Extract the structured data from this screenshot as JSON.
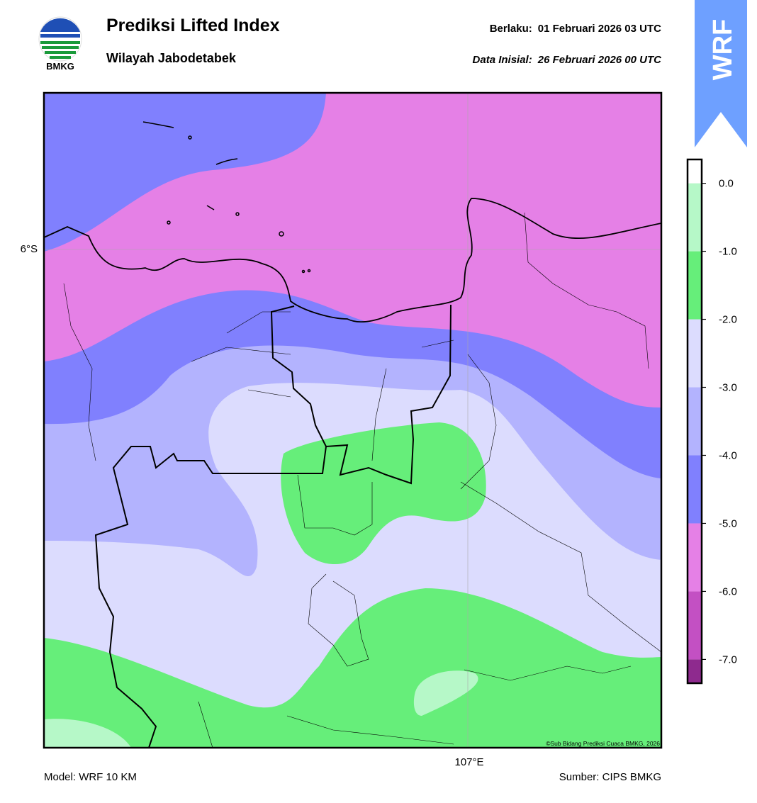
{
  "header": {
    "title": "Prediksi Lifted Index",
    "subtitle": "Wilayah Jabodetabek",
    "valid_label": "Berlaku:",
    "valid_time": "01 Februari 2026 03 UTC",
    "init_label": "Data Inisial:",
    "init_time": "26 Februari 2026 00 UTC",
    "logo_text": "BMKG",
    "badge": "WRF"
  },
  "map": {
    "lat_label": "6°S",
    "lon_label": "107°E",
    "credit": "©Sub Bidang Prediksi Cuaca BMKG, 2026"
  },
  "colorbar": {
    "range": [
      -7.35,
      0.35
    ],
    "bounds": [
      -7.35,
      -7,
      -6,
      -5,
      -4,
      -3,
      -2,
      -1,
      0,
      0.35
    ],
    "colors": [
      "#8e2a8e",
      "#c350c3",
      "#e580e6",
      "#8080fe",
      "#b3b3fe",
      "#dcdcfe",
      "#66ee7a",
      "#b6f8c8",
      "#ffffff"
    ],
    "ticks": [
      {
        "value": 0,
        "label": "0.0"
      },
      {
        "value": -1,
        "label": "-1.0"
      },
      {
        "value": -2,
        "label": "-2.0"
      },
      {
        "value": -3,
        "label": "-3.0"
      },
      {
        "value": -4,
        "label": "-4.0"
      },
      {
        "value": -5,
        "label": "-5.0"
      },
      {
        "value": -6,
        "label": "-6.0"
      },
      {
        "value": -7,
        "label": "-7.0"
      }
    ]
  },
  "footer": {
    "model": "Model: WRF 10 KM",
    "source": "Sumber: CIPS BMKG"
  }
}
